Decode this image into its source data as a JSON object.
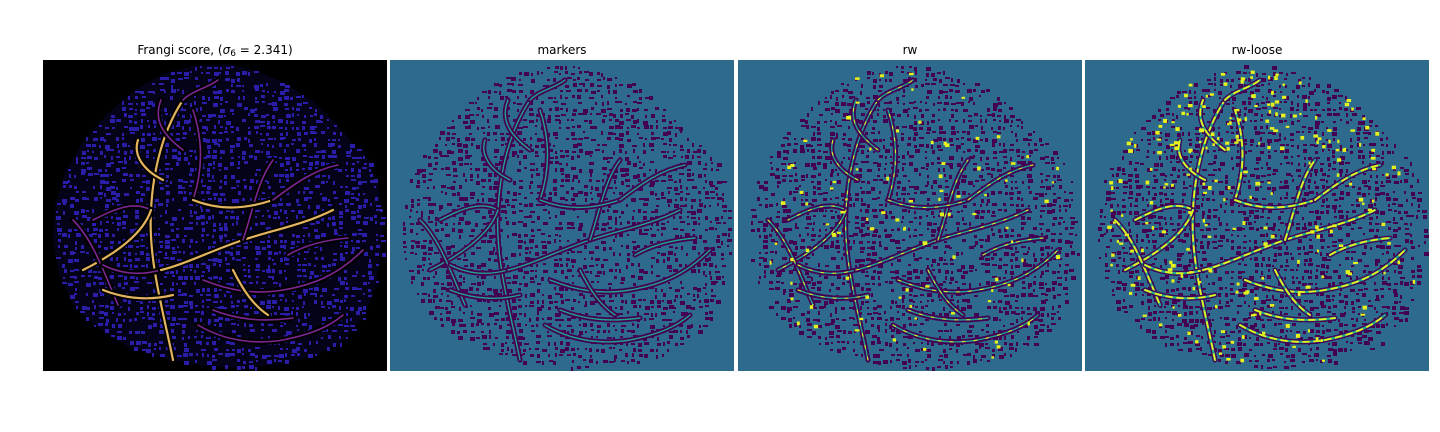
{
  "panels": [
    {
      "title_prefix": "Frangi score, (",
      "title_symbol": "σ",
      "title_subscript": "6",
      "title_suffix": " = 2.341)",
      "colormap": "magma",
      "background_color": "#000000",
      "cell_color": "#2a1ea8",
      "vessel_color_low": "#8b2aa3",
      "vessel_color_high": "#fcc86a"
    },
    {
      "title": "markers",
      "colormap": "viridis",
      "background_color": "#2d6a8c",
      "cell_color": "#440154",
      "vessel_color": "#21a38d"
    },
    {
      "title": "rw",
      "colormap": "viridis",
      "background_color": "#2d6a8c",
      "cell_color": "#440154",
      "vessel_color": "#21a38d",
      "highlight_color": "#e6f21b"
    },
    {
      "title": "rw-loose",
      "colormap": "viridis",
      "background_color": "#2d6a8c",
      "cell_color": "#440154",
      "vessel_color": "#21a38d",
      "highlight_color": "#e6f21b"
    }
  ]
}
